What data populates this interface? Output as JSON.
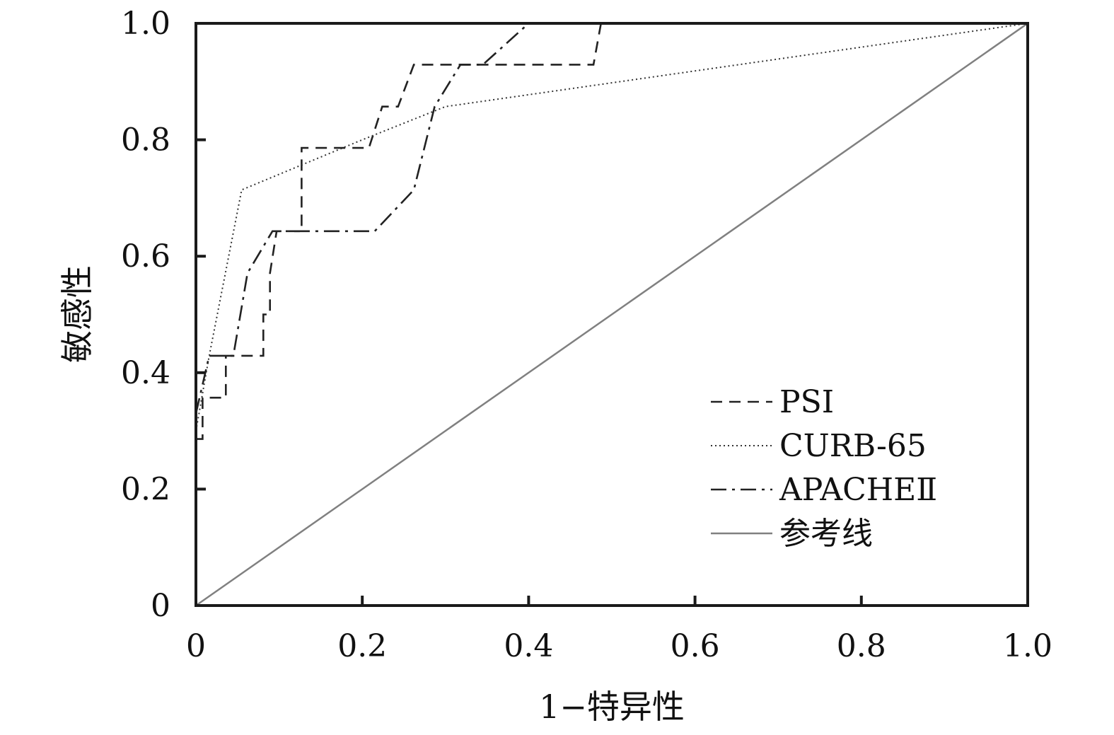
{
  "chart_data": {
    "type": "line",
    "title": "",
    "xlabel": "1−特异性",
    "ylabel": "敏感性",
    "xlim": [
      0,
      1
    ],
    "ylim": [
      0,
      1
    ],
    "x_ticks": [
      "0",
      "0.2",
      "0.4",
      "0.6",
      "0.8",
      "1.0"
    ],
    "y_ticks": [
      "0",
      "0.2",
      "0.4",
      "0.6",
      "0.8",
      "1.0"
    ],
    "grid": false,
    "legend_position": "bottom-right",
    "series": [
      {
        "name": "PSI",
        "style": "dashed",
        "color": "#222222",
        "points": [
          [
            0,
            0.286
          ],
          [
            0.008,
            0.286
          ],
          [
            0.008,
            0.357
          ],
          [
            0.036,
            0.357
          ],
          [
            0.036,
            0.429
          ],
          [
            0.081,
            0.429
          ],
          [
            0.081,
            0.5
          ],
          [
            0.089,
            0.5
          ],
          [
            0.089,
            0.571
          ],
          [
            0.097,
            0.643
          ],
          [
            0.127,
            0.643
          ],
          [
            0.127,
            0.786
          ],
          [
            0.208,
            0.786
          ],
          [
            0.224,
            0.857
          ],
          [
            0.243,
            0.857
          ],
          [
            0.262,
            0.929
          ],
          [
            0.478,
            0.929
          ],
          [
            0.487,
            1.0
          ],
          [
            1.0,
            1.0
          ]
        ]
      },
      {
        "name": "CURB-65",
        "style": "dotted",
        "color": "#333333",
        "points": [
          [
            0,
            0.3
          ],
          [
            0.016,
            0.429
          ],
          [
            0.055,
            0.714
          ],
          [
            0.2,
            0.8
          ],
          [
            0.3,
            0.857
          ],
          [
            1.0,
            1.0
          ]
        ]
      },
      {
        "name": "APACHEⅡ",
        "style": "dash-dot",
        "color": "#222222",
        "points": [
          [
            0,
            0.33
          ],
          [
            0.016,
            0.429
          ],
          [
            0.045,
            0.429
          ],
          [
            0.062,
            0.571
          ],
          [
            0.092,
            0.643
          ],
          [
            0.215,
            0.643
          ],
          [
            0.262,
            0.714
          ],
          [
            0.287,
            0.857
          ],
          [
            0.318,
            0.929
          ],
          [
            0.345,
            0.929
          ],
          [
            0.4,
            1.0
          ],
          [
            1.0,
            1.0
          ]
        ]
      },
      {
        "name": "参考线",
        "style": "solid",
        "color": "#808080",
        "points": [
          [
            0,
            0
          ],
          [
            1,
            1
          ]
        ]
      }
    ]
  }
}
